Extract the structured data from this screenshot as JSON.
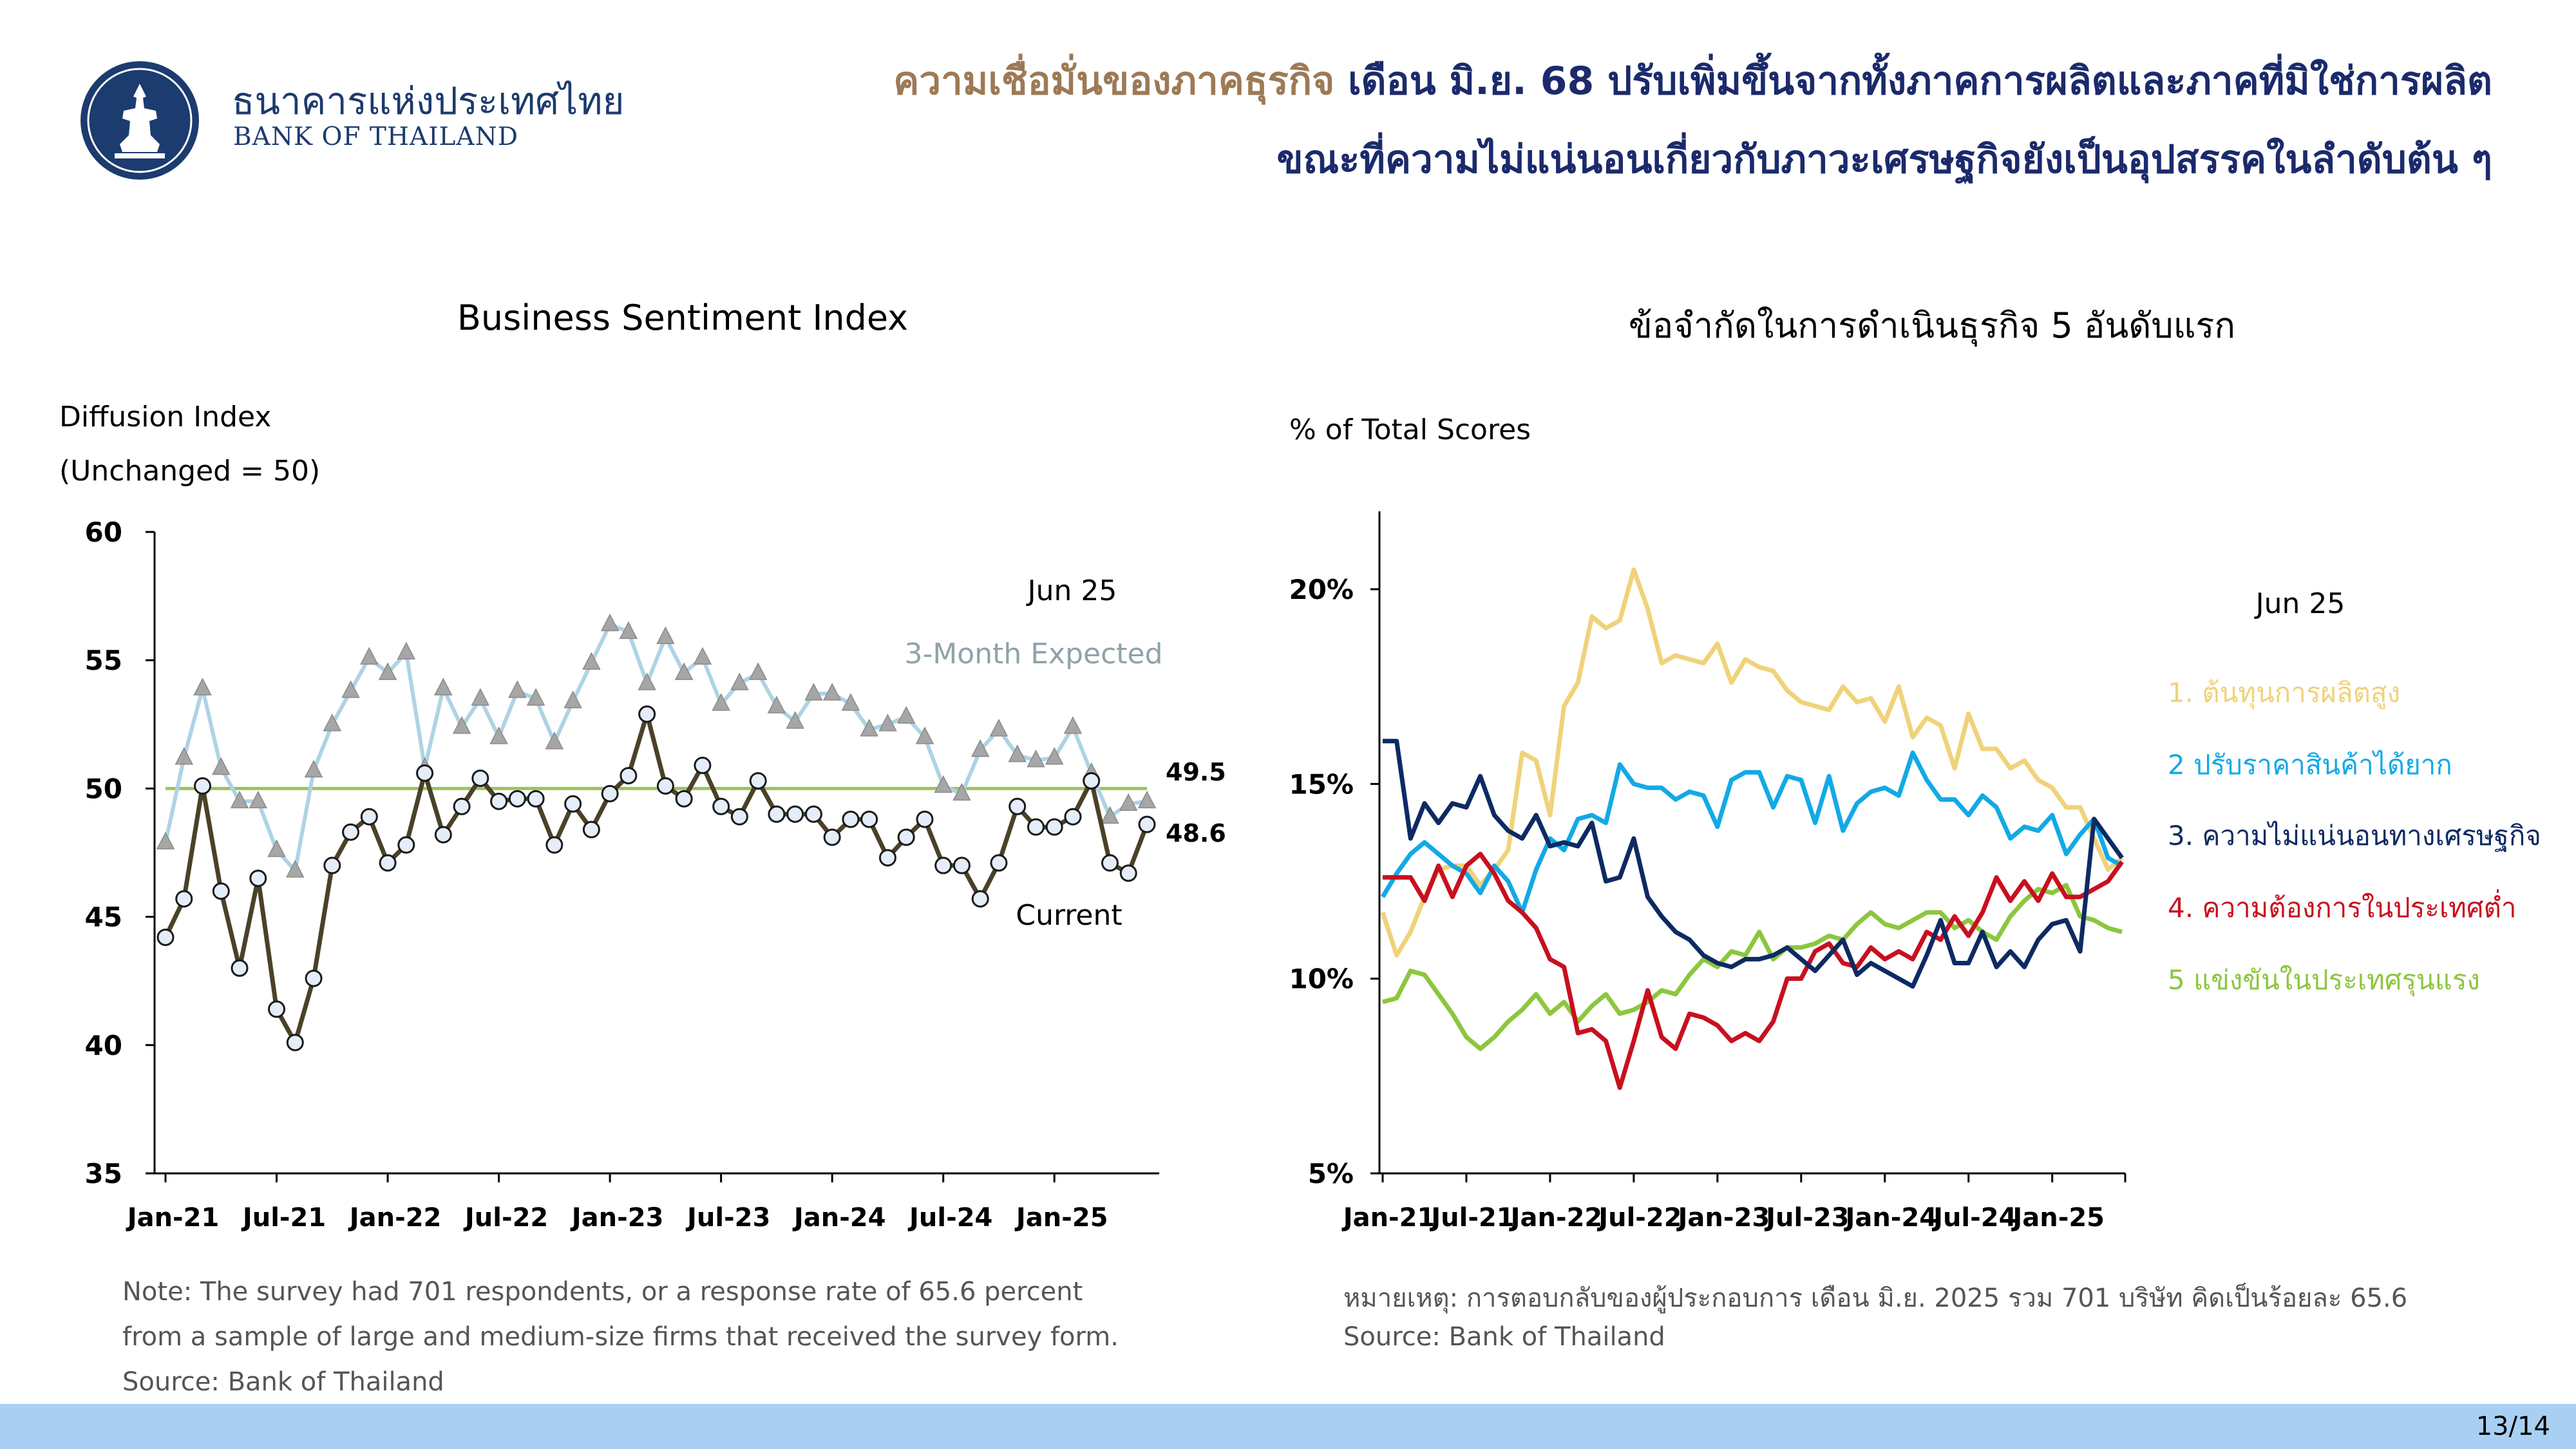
{
  "header": {
    "bank_name_th": "ธนาคารแห่งประเทศไทย",
    "bank_name_en": "BANK OF THAILAND",
    "headline_highlight": "ความเชื่อมั่นของภาคธุรกิจ",
    "headline_line1_rest": " เดือน มิ.ย. 68 ปรับเพิ่มขึ้นจากทั้งภาคการผลิตและภาคที่มิใช่การผลิต",
    "headline_line2": "ขณะที่ความไม่แน่นอนเกี่ยวกับภาวะเศรษฐกิจยังเป็นอุปสรรคในลำดับต้น ๆ"
  },
  "left_panel": {
    "title": "Business Sentiment Index",
    "ylabel_line1": "Diffusion Index",
    "ylabel_line2": "(Unchanged = 50)",
    "note_line1": "Note: The survey had 701 respondents, or a response rate of 65.6 percent",
    "note_line2": "from a sample of large and medium-size firms that received the survey form.",
    "source": "Source: Bank of Thailand"
  },
  "right_panel": {
    "title": "ข้อจำกัดในการดำเนินธุรกิจ 5 อันดับแรก",
    "ylabel": "% of Total Scores",
    "note_line1": "หมายเหตุ: การตอบกลับของผู้ประกอบการ เดือน มิ.ย. 2025 รวม 701 บริษัท คิดเป็นร้อยละ 65.6",
    "source": "Source: Bank of Thailand"
  },
  "footer": {
    "page": "13/14"
  },
  "colors": {
    "current": "#4a4128",
    "expected": "#aed3e4",
    "baseline": "#9bc45a",
    "s1": "#f0d27a",
    "s2": "#13a9e6",
    "s3": "#0d2a63",
    "s4": "#c8101f",
    "s5": "#8cc63e"
  },
  "chart_data": [
    {
      "type": "line",
      "title": "Business Sentiment Index",
      "ylabel": "Diffusion Index (Unchanged = 50)",
      "ylim": [
        35,
        60
      ],
      "yticks": [
        "60",
        "55",
        "50",
        "45",
        "40",
        "35"
      ],
      "xticks": [
        "Jan-21",
        "Jul-21",
        "Jan-22",
        "Jul-22",
        "Jan-23",
        "Jul-23",
        "Jan-24",
        "Jul-24",
        "Jan-25"
      ],
      "reference_line": 50,
      "legend_date": "Jun 25",
      "series": [
        {
          "name": "3-Month Expected",
          "last_label": "49.5",
          "values": [
            47.9,
            51.2,
            53.9,
            50.8,
            49.5,
            49.5,
            47.6,
            46.8,
            50.7,
            52.5,
            53.8,
            55.1,
            54.5,
            55.3,
            50.8,
            53.9,
            52.4,
            53.5,
            52.0,
            53.8,
            53.5,
            51.8,
            53.4,
            54.9,
            56.4,
            56.1,
            54.1,
            55.9,
            54.5,
            55.1,
            53.3,
            54.1,
            54.5,
            53.2,
            52.6,
            53.7,
            53.7,
            53.3,
            52.3,
            52.5,
            52.8,
            52.0,
            50.1,
            49.8,
            51.5,
            52.3,
            51.3,
            51.1,
            51.2,
            52.4,
            50.6,
            48.9,
            49.4,
            49.5
          ]
        },
        {
          "name": "Current",
          "last_label": "48.6",
          "values": [
            44.2,
            45.7,
            50.1,
            46.0,
            43.0,
            46.5,
            41.4,
            40.1,
            42.6,
            47.0,
            48.3,
            48.9,
            47.1,
            47.8,
            50.6,
            48.2,
            49.3,
            50.4,
            49.5,
            49.6,
            49.6,
            47.8,
            49.4,
            48.4,
            49.8,
            50.5,
            52.9,
            50.1,
            49.6,
            50.9,
            49.3,
            48.9,
            50.3,
            49.0,
            49.0,
            49.0,
            48.1,
            48.8,
            48.8,
            47.3,
            48.1,
            48.8,
            47.0,
            47.0,
            45.7,
            47.1,
            49.3,
            48.5,
            48.5,
            48.9,
            50.3,
            47.1,
            46.7,
            48.6
          ]
        }
      ]
    },
    {
      "type": "line",
      "title": "ข้อจำกัดในการดำเนินธุรกิจ 5 อันดับแรก",
      "ylabel": "% of Total Scores",
      "ylim": [
        5,
        22
      ],
      "yticks": [
        "20%",
        "15%",
        "10%",
        "5%"
      ],
      "xticks": [
        "Jan-21",
        "Jul-21",
        "Jan-22",
        "Jul-22",
        "Jan-23",
        "Jul-23",
        "Jan-24",
        "Jul-24",
        "Jan-25"
      ],
      "legend_date": "Jun 25",
      "series": [
        {
          "name": "1. ต้นทุนการผลิตสูง",
          "values": [
            11.7,
            10.6,
            11.2,
            12.1,
            12.8,
            12.9,
            12.9,
            12.4,
            12.8,
            13.3,
            15.8,
            15.6,
            14.2,
            17.0,
            17.6,
            19.3,
            19.0,
            19.2,
            20.5,
            19.5,
            18.1,
            18.3,
            18.2,
            18.1,
            18.6,
            17.6,
            18.2,
            18.0,
            17.9,
            17.4,
            17.1,
            17.0,
            16.9,
            17.5,
            17.1,
            17.2,
            16.6,
            17.5,
            16.2,
            16.7,
            16.5,
            15.4,
            16.8,
            15.9,
            15.9,
            15.4,
            15.6,
            15.1,
            14.9,
            14.4,
            14.4,
            13.6,
            12.8,
            13.1
          ]
        },
        {
          "name": "2 ปรับราคาสินค้าได้ยาก",
          "values": [
            12.1,
            12.7,
            13.2,
            13.5,
            13.2,
            12.9,
            12.7,
            12.2,
            12.9,
            12.5,
            11.7,
            12.8,
            13.6,
            13.3,
            14.1,
            14.2,
            14.0,
            15.5,
            15.0,
            14.9,
            14.9,
            14.6,
            14.8,
            14.7,
            13.9,
            15.1,
            15.3,
            15.3,
            14.4,
            15.2,
            15.1,
            14.0,
            15.2,
            13.8,
            14.5,
            14.8,
            14.9,
            14.7,
            15.8,
            15.1,
            14.6,
            14.6,
            14.2,
            14.7,
            14.4,
            13.6,
            13.9,
            13.8,
            14.2,
            13.2,
            13.7,
            14.1,
            13.1,
            12.9
          ]
        },
        {
          "name": "3. ความไม่แน่นอนทางเศรษฐกิจ",
          "values": [
            16.1,
            16.1,
            13.6,
            14.5,
            14.0,
            14.5,
            14.4,
            15.2,
            14.2,
            13.8,
            13.6,
            14.2,
            13.4,
            13.5,
            13.4,
            14.0,
            12.5,
            12.6,
            13.6,
            12.1,
            11.6,
            11.2,
            11.0,
            10.6,
            10.4,
            10.3,
            10.5,
            10.5,
            10.6,
            10.8,
            10.5,
            10.2,
            10.6,
            11.0,
            10.1,
            10.4,
            10.2,
            10.0,
            9.8,
            10.6,
            11.5,
            10.4,
            10.4,
            11.2,
            10.3,
            10.7,
            10.3,
            11.0,
            11.4,
            11.5,
            10.7,
            14.1,
            13.6,
            13.1
          ]
        },
        {
          "name": "4. ความต้องการในประเทศต่ำ",
          "values": [
            12.6,
            12.6,
            12.6,
            12.0,
            12.9,
            12.1,
            12.9,
            13.2,
            12.7,
            12.0,
            11.7,
            11.3,
            10.5,
            10.3,
            8.6,
            8.7,
            8.4,
            7.2,
            8.4,
            9.7,
            8.5,
            8.2,
            9.1,
            9.0,
            8.8,
            8.4,
            8.6,
            8.4,
            8.9,
            10.0,
            10.0,
            10.7,
            10.9,
            10.4,
            10.3,
            10.8,
            10.5,
            10.7,
            10.5,
            11.2,
            11.0,
            11.6,
            11.1,
            11.7,
            12.6,
            12.0,
            12.5,
            12.0,
            12.7,
            12.1,
            12.1,
            12.3,
            12.5,
            13.0
          ]
        },
        {
          "name": "5 แข่งขันในประเทศรุนแรง",
          "values": [
            9.4,
            9.5,
            10.2,
            10.1,
            9.6,
            9.1,
            8.5,
            8.2,
            8.5,
            8.9,
            9.2,
            9.6,
            9.1,
            9.4,
            8.9,
            9.3,
            9.6,
            9.1,
            9.2,
            9.4,
            9.7,
            9.6,
            10.1,
            10.5,
            10.3,
            10.7,
            10.6,
            11.2,
            10.5,
            10.8,
            10.8,
            10.9,
            11.1,
            11.0,
            11.4,
            11.7,
            11.4,
            11.3,
            11.5,
            11.7,
            11.7,
            11.3,
            11.5,
            11.2,
            11.0,
            11.6,
            12.0,
            12.3,
            12.2,
            12.4,
            11.6,
            11.5,
            11.3,
            11.2
          ]
        }
      ]
    }
  ]
}
